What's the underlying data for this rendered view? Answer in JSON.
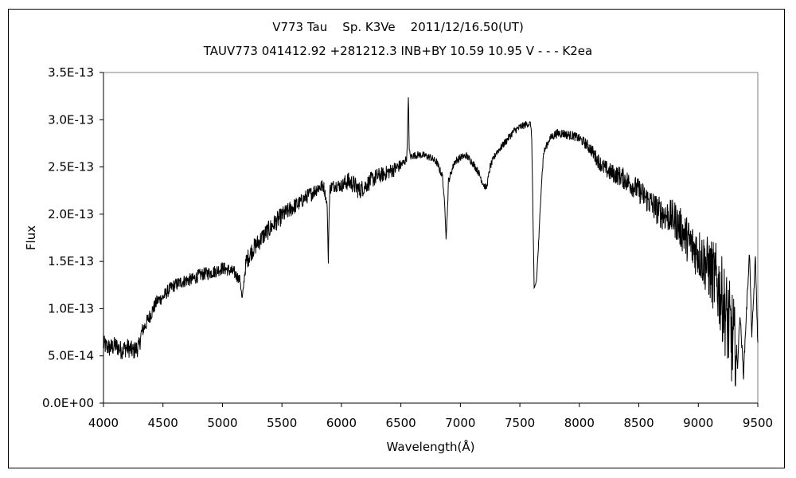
{
  "chart_data": {
    "type": "line",
    "title": "V773 Tau    Sp. K3Ve    2011/12/16.50(UT)",
    "subtitle": "TAUV773 041412.92 +281212.3 INB+BY 10.59 10.95 V - - - K2ea",
    "xlabel": "Wavelength(Å)",
    "ylabel": "Flux",
    "xlim": [
      4000,
      9500
    ],
    "ylim": [
      0,
      3.5e-13
    ],
    "x_ticks": [
      "4000",
      "4500",
      "5000",
      "5500",
      "6000",
      "6500",
      "7000",
      "7500",
      "8000",
      "8500",
      "9000",
      "9500"
    ],
    "y_ticks": [
      "0.0E+00",
      "5.0E-14",
      "1.0E-13",
      "1.5E-13",
      "2.0E-13",
      "2.5E-13",
      "3.0E-13",
      "3.5E-13"
    ],
    "grid": false,
    "legend": "none",
    "line_color": "#000000",
    "series": [
      {
        "x": [
          4000,
          4050,
          4100,
          4150,
          4200,
          4250,
          4300,
          4320,
          4350,
          4400,
          4450,
          4500,
          4550,
          4600,
          4650,
          4700,
          4750,
          4800,
          4850,
          4900,
          4950,
          5000,
          5050,
          5100,
          5150,
          5165,
          5175,
          5185,
          5200,
          5250,
          5300,
          5350,
          5400,
          5450,
          5500,
          5550,
          5600,
          5650,
          5700,
          5750,
          5800,
          5850,
          5880,
          5890,
          5896,
          5905,
          5950,
          6000,
          6050,
          6100,
          6150,
          6200,
          6250,
          6300,
          6350,
          6400,
          6450,
          6500,
          6530,
          6550,
          6556,
          6563,
          6570,
          6580,
          6600,
          6650,
          6700,
          6750,
          6800,
          6850,
          6870,
          6880,
          6890,
          6900,
          6950,
          7000,
          7050,
          7100,
          7150,
          7200,
          7220,
          7250,
          7300,
          7350,
          7400,
          7450,
          7500,
          7550,
          7590,
          7600,
          7620,
          7640,
          7660,
          7680,
          7700,
          7750,
          7800,
          7850,
          7900,
          7950,
          8000,
          8050,
          8100,
          8150,
          8200,
          8250,
          8300,
          8350,
          8400,
          8450,
          8500,
          8550,
          8600,
          8650,
          8700,
          8750,
          8800,
          8850,
          8900,
          8950,
          9000,
          9050,
          9100,
          9150,
          9200,
          9250,
          9300,
          9330,
          9350,
          9380,
          9400,
          9430,
          9450,
          9480,
          9500
        ],
        "y": [
          6.2e-14,
          5.8e-14,
          6.1e-14,
          5.6e-14,
          5.9e-14,
          5.5e-14,
          6e-14,
          7.5e-14,
          8.2e-14,
          9.5e-14,
          1.08e-13,
          1.12e-13,
          1.2e-13,
          1.25e-13,
          1.28e-13,
          1.3e-13,
          1.31e-13,
          1.35e-13,
          1.37e-13,
          1.38e-13,
          1.4e-13,
          1.43e-13,
          1.41e-13,
          1.38e-13,
          1.3e-13,
          1.1e-13,
          1.2e-13,
          1.35e-13,
          1.5e-13,
          1.62e-13,
          1.7e-13,
          1.78e-13,
          1.85e-13,
          1.92e-13,
          1.98e-13,
          2.03e-13,
          2.08e-13,
          2.12e-13,
          2.18e-13,
          2.22e-13,
          2.28e-13,
          2.3e-13,
          2.1e-13,
          1.48e-13,
          2e-13,
          2.28e-13,
          2.31e-13,
          2.3e-13,
          2.35e-13,
          2.32e-13,
          2.25e-13,
          2.3e-13,
          2.36e-13,
          2.4e-13,
          2.42e-13,
          2.45e-13,
          2.48e-13,
          2.52e-13,
          2.55e-13,
          2.6e-13,
          2.9e-13,
          3.25e-13,
          2.7e-13,
          2.6e-13,
          2.62e-13,
          2.63e-13,
          2.62e-13,
          2.6e-13,
          2.55e-13,
          2.4e-13,
          2.05e-13,
          1.75e-13,
          2e-13,
          2.35e-13,
          2.55e-13,
          2.6e-13,
          2.62e-13,
          2.55e-13,
          2.45e-13,
          2.3e-13,
          2.28e-13,
          2.5e-13,
          2.65e-13,
          2.72e-13,
          2.8e-13,
          2.88e-13,
          2.92e-13,
          2.95e-13,
          2.96e-13,
          2.8e-13,
          1.2e-13,
          1.3e-13,
          1.75e-13,
          2.3e-13,
          2.65e-13,
          2.8e-13,
          2.85e-13,
          2.86e-13,
          2.84e-13,
          2.83e-13,
          2.8e-13,
          2.75e-13,
          2.68e-13,
          2.58e-13,
          2.5e-13,
          2.45e-13,
          2.42e-13,
          2.4e-13,
          2.35e-13,
          2.3e-13,
          2.25e-13,
          2.18e-13,
          2.12e-13,
          2.05e-13,
          2e-13,
          1.98e-13,
          1.95e-13,
          1.85e-13,
          1.75e-13,
          1.65e-13,
          1.6e-13,
          1.5e-13,
          1.4e-13,
          1.3e-13,
          1.1e-13,
          8.5e-14,
          6e-14,
          4e-14,
          9.5e-14,
          3e-14,
          8.5e-14,
          1.6e-13,
          7e-14,
          1.55e-13,
          6e-14
        ],
        "noise_amplitude": [
          1e-14,
          1e-14,
          1e-14,
          1e-14,
          1e-14,
          1e-14,
          1e-14,
          8e-15,
          8e-15,
          8e-15,
          7e-15,
          7e-15,
          7e-15,
          7e-15,
          7e-15,
          7e-15,
          7e-15,
          7e-15,
          7e-15,
          7e-15,
          7e-15,
          7e-15,
          7e-15,
          7e-15,
          5e-15,
          3e-15,
          3e-15,
          5e-15,
          1e-14,
          1e-14,
          1e-14,
          1e-14,
          1e-14,
          1e-14,
          1e-14,
          9e-15,
          9e-15,
          8e-15,
          8e-15,
          8e-15,
          8e-15,
          7e-15,
          3e-15,
          2e-15,
          3e-15,
          7e-15,
          7e-15,
          7e-15,
          1e-14,
          1e-14,
          1e-14,
          9e-15,
          9e-15,
          9e-15,
          8e-15,
          8e-15,
          8e-15,
          6e-15,
          5e-15,
          4e-15,
          2e-15,
          2e-15,
          2e-15,
          4e-15,
          4e-15,
          4e-15,
          4e-15,
          4e-15,
          4e-15,
          4e-15,
          2e-15,
          2e-15,
          2e-15,
          4e-15,
          4e-15,
          4e-15,
          4e-15,
          4e-15,
          4e-15,
          4e-15,
          3e-15,
          4e-15,
          4e-15,
          4e-15,
          4e-15,
          4e-15,
          4e-15,
          4e-15,
          3e-15,
          2e-15,
          2e-15,
          2e-15,
          3e-15,
          4e-15,
          4e-15,
          4e-15,
          5e-15,
          5e-15,
          5e-15,
          5e-15,
          5e-15,
          6e-15,
          7e-15,
          8e-15,
          9e-15,
          1e-14,
          1e-14,
          1.1e-14,
          1.2e-14,
          1.2e-14,
          1.3e-14,
          1.4e-14,
          1.5e-14,
          1.6e-14,
          1.7e-14,
          1.8e-14,
          2e-14,
          2.2e-14,
          2.4e-14,
          2.6e-14,
          2.8e-14,
          3e-14,
          3.5e-14,
          4e-14,
          4.5e-14,
          5e-14,
          5.5e-14,
          5e-15,
          5e-15,
          5e-15,
          5e-15,
          5e-15,
          5e-15,
          5e-15,
          5e-15
        ]
      }
    ]
  }
}
